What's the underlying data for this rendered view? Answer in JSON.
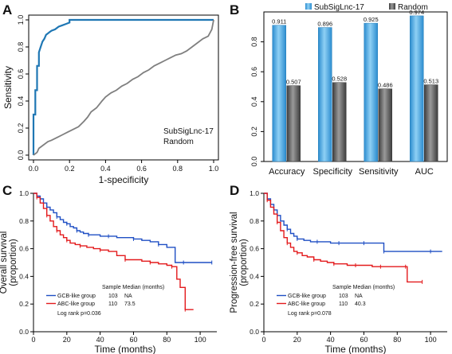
{
  "chart_data": [
    {
      "panel": "A",
      "type": "line",
      "xlabel": "1-specificity",
      "ylabel": "Sensitivity",
      "xlim": [
        0,
        1
      ],
      "ylim": [
        0,
        1
      ],
      "xticks": [
        "0.0",
        "0.2",
        "0.4",
        "0.6",
        "0.8",
        "1.0"
      ],
      "yticks": [
        "0.0",
        "0.2",
        "0.4",
        "0.6",
        "0.8",
        "1.0"
      ],
      "legend": [
        "SubSigLnc-17",
        "Random"
      ],
      "legend_position": "bottom-right",
      "series": [
        {
          "name": "SubSigLnc-17",
          "color": "#1f77b4",
          "x": [
            0,
            0,
            0.01,
            0.01,
            0.02,
            0.02,
            0.03,
            0.03,
            0.04,
            0.05,
            0.06,
            0.07,
            0.08,
            0.09,
            0.1,
            0.12,
            0.14,
            0.16,
            0.18,
            0.2,
            0.2,
            0.3,
            0.4,
            0.5,
            0.6,
            0.7,
            0.8,
            0.9,
            1
          ],
          "y": [
            0,
            0.3,
            0.3,
            0.48,
            0.48,
            0.66,
            0.66,
            0.76,
            0.8,
            0.84,
            0.86,
            0.89,
            0.9,
            0.91,
            0.92,
            0.93,
            0.95,
            0.96,
            0.97,
            0.98,
            1,
            1,
            1,
            1,
            1,
            1,
            1,
            1,
            1
          ]
        },
        {
          "name": "Random",
          "color": "#7f7f7f",
          "x": [
            0,
            0.02,
            0.03,
            0.05,
            0.08,
            0.1,
            0.13,
            0.16,
            0.19,
            0.22,
            0.25,
            0.28,
            0.3,
            0.32,
            0.35,
            0.38,
            0.4,
            0.43,
            0.46,
            0.49,
            0.52,
            0.55,
            0.58,
            0.61,
            0.64,
            0.67,
            0.7,
            0.73,
            0.76,
            0.79,
            0.82,
            0.85,
            0.88,
            0.91,
            0.94,
            0.97,
            0.99,
            1
          ],
          "y": [
            0,
            0.02,
            0.05,
            0.07,
            0.1,
            0.11,
            0.13,
            0.15,
            0.17,
            0.19,
            0.21,
            0.25,
            0.28,
            0.32,
            0.35,
            0.4,
            0.43,
            0.46,
            0.48,
            0.51,
            0.53,
            0.56,
            0.58,
            0.61,
            0.63,
            0.66,
            0.68,
            0.7,
            0.72,
            0.74,
            0.75,
            0.77,
            0.8,
            0.83,
            0.86,
            0.88,
            0.93,
            1
          ]
        }
      ]
    },
    {
      "panel": "B",
      "type": "bar",
      "categories": [
        "Accuracy",
        "Specificity",
        "Sensitivity",
        "AUC"
      ],
      "ylim": [
        0,
        1
      ],
      "yticks": [
        "0.0",
        "0.2",
        "0.4",
        "0.6",
        "0.8"
      ],
      "legend_position": "top",
      "series": [
        {
          "name": "SubSigLnc-17",
          "color": "#4aa3df",
          "values": [
            0.911,
            0.896,
            0.925,
            0.974
          ],
          "labels": [
            "0.911",
            "0.896",
            "0.925",
            "0.974"
          ]
        },
        {
          "name": "Random",
          "color": "#595959",
          "values": [
            0.507,
            0.528,
            0.486,
            0.513
          ],
          "labels": [
            "0.507",
            "0.528",
            "0.486",
            "0.513"
          ]
        }
      ]
    },
    {
      "panel": "C",
      "type": "line",
      "xlabel": "Time (months)",
      "ylabel": "Overall survival (proportion)",
      "ylabel_lines": [
        "Overall survival",
        "(proportion)"
      ],
      "xlim": [
        0,
        110
      ],
      "ylim": [
        0,
        1
      ],
      "xticks": [
        "0",
        "20",
        "40",
        "60",
        "80",
        "100"
      ],
      "yticks": [
        "0.0",
        "0.2",
        "0.4",
        "0.6",
        "0.8",
        "1.0"
      ],
      "median_header": "Sample Median (months)",
      "groups": [
        {
          "name": "GCB-like group",
          "n": "103",
          "median": "NA"
        },
        {
          "name": "ABC-like group",
          "n": "110",
          "median": "73.5"
        }
      ],
      "pvalue": "Log rank p=0.036",
      "series": [
        {
          "name": "GCB-like group",
          "color": "#1f4fc4",
          "x": [
            0,
            2,
            4,
            6,
            8,
            10,
            12,
            14,
            16,
            18,
            20,
            22,
            24,
            26,
            28,
            30,
            33,
            36,
            40,
            45,
            50,
            55,
            60,
            65,
            70,
            75,
            80,
            85,
            90,
            95,
            100,
            107
          ],
          "y": [
            1,
            0.98,
            0.96,
            0.93,
            0.9,
            0.88,
            0.86,
            0.83,
            0.81,
            0.79,
            0.78,
            0.76,
            0.75,
            0.73,
            0.72,
            0.71,
            0.7,
            0.7,
            0.69,
            0.69,
            0.68,
            0.68,
            0.67,
            0.66,
            0.65,
            0.63,
            0.61,
            0.5,
            0.5,
            0.5,
            0.5,
            0.5
          ]
        },
        {
          "name": "ABC-like group",
          "color": "#e31a1c",
          "x": [
            0,
            2,
            4,
            6,
            8,
            10,
            12,
            14,
            16,
            18,
            20,
            22,
            25,
            28,
            32,
            36,
            40,
            45,
            50,
            55,
            60,
            65,
            70,
            75,
            80,
            83,
            86,
            88,
            91,
            94,
            96
          ],
          "y": [
            1,
            0.97,
            0.93,
            0.89,
            0.84,
            0.8,
            0.76,
            0.73,
            0.7,
            0.68,
            0.66,
            0.64,
            0.63,
            0.62,
            0.61,
            0.6,
            0.59,
            0.58,
            0.55,
            0.52,
            0.52,
            0.51,
            0.5,
            0.49,
            0.48,
            0.47,
            0.38,
            0.32,
            0.16,
            0.16,
            0.16
          ]
        }
      ]
    },
    {
      "panel": "D",
      "type": "line",
      "xlabel": "Time (months)",
      "ylabel": "Progression-free survival (proportion)",
      "ylabel_lines": [
        "Progression-free survival",
        "(proportion)"
      ],
      "xlim": [
        0,
        110
      ],
      "ylim": [
        0,
        1
      ],
      "xticks": [
        "0",
        "20",
        "40",
        "60",
        "80",
        "100"
      ],
      "yticks": [
        "0.0",
        "0.2",
        "0.4",
        "0.6",
        "0.8",
        "1.0"
      ],
      "median_header": "Sample Median (months)",
      "groups": [
        {
          "name": "GCB-like group",
          "n": "103",
          "median": "NA"
        },
        {
          "name": "ABC-like group",
          "n": "110",
          "median": "40.3"
        }
      ],
      "pvalue": "Log rank p=0.078",
      "series": [
        {
          "name": "GCB-like group",
          "color": "#1f4fc4",
          "x": [
            0,
            2,
            4,
            6,
            8,
            10,
            12,
            14,
            16,
            18,
            20,
            24,
            28,
            32,
            36,
            40,
            45,
            50,
            55,
            60,
            65,
            70,
            72,
            80,
            90,
            100,
            107
          ],
          "y": [
            1,
            0.96,
            0.92,
            0.88,
            0.84,
            0.8,
            0.77,
            0.74,
            0.71,
            0.69,
            0.67,
            0.66,
            0.65,
            0.65,
            0.65,
            0.64,
            0.64,
            0.64,
            0.64,
            0.64,
            0.64,
            0.64,
            0.58,
            0.58,
            0.58,
            0.58,
            0.58
          ]
        },
        {
          "name": "ABC-like group",
          "color": "#e31a1c",
          "x": [
            0,
            2,
            4,
            6,
            8,
            10,
            12,
            14,
            16,
            18,
            20,
            23,
            26,
            30,
            34,
            38,
            42,
            46,
            50,
            55,
            60,
            65,
            70,
            75,
            80,
            85,
            86,
            90,
            95
          ],
          "y": [
            1,
            0.95,
            0.9,
            0.85,
            0.79,
            0.73,
            0.68,
            0.64,
            0.61,
            0.58,
            0.57,
            0.55,
            0.54,
            0.52,
            0.51,
            0.5,
            0.49,
            0.49,
            0.48,
            0.48,
            0.48,
            0.47,
            0.47,
            0.47,
            0.47,
            0.47,
            0.36,
            0.36,
            0.36
          ]
        }
      ]
    }
  ]
}
